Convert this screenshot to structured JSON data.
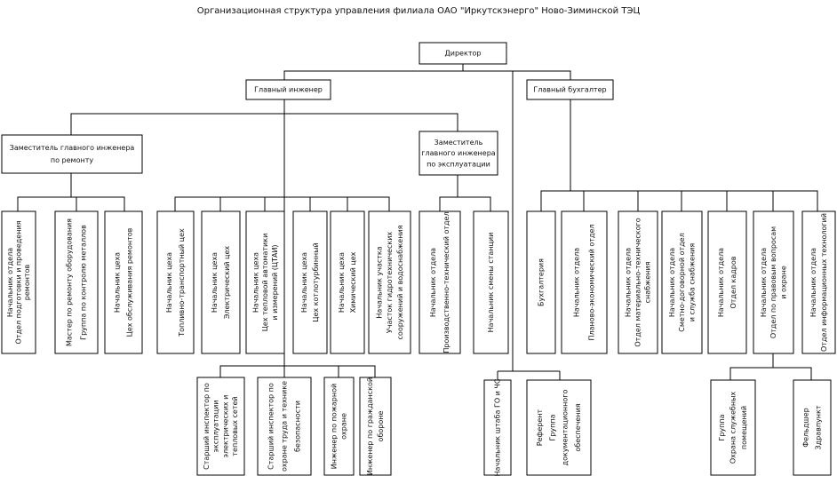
{
  "title": "Организационная структура управления филиала ОАО \"Иркутскэнерго\" Ново-Зиминской ТЭЦ",
  "nodes": [
    {
      "lines": [
        "Директор"
      ]
    },
    {
      "lines": [
        "Главный инженер"
      ]
    },
    {
      "lines": [
        "Главный бухгалтер"
      ]
    },
    {
      "lines": [
        "Заместитель главного инженера",
        "по ремонту"
      ]
    },
    {
      "lines": [
        "Заместитель",
        "главного инженера",
        "по эксплуатации"
      ]
    },
    {
      "lines": [
        "Начальник отдела",
        "Отдел подготовки и проведения",
        "ремонтов"
      ]
    },
    {
      "lines": [
        "Мастер по ремонту оборудования",
        "Группа по контролю металлов"
      ]
    },
    {
      "lines": [
        "Начальник цеха",
        "Цех обслуживания ремонтов"
      ]
    },
    {
      "lines": [
        "Начальник цеха",
        "Топливно-транспортный цех"
      ]
    },
    {
      "lines": [
        "Начальник цеха",
        "Электрический цех"
      ]
    },
    {
      "lines": [
        "Начальник цеха",
        "Цех тепловой автоматики",
        "и измерений (ЦТАИ)"
      ]
    },
    {
      "lines": [
        "Начальник цеха",
        "Цех котлотурбинный"
      ]
    },
    {
      "lines": [
        "Начальник цеха",
        "Химический цех"
      ]
    },
    {
      "lines": [
        "Начальник участка",
        "Участок гидротехнических",
        "сооружений и водоснабжения"
      ]
    },
    {
      "lines": [
        "Начальник отдела",
        "Производственно-технический отдел"
      ]
    },
    {
      "lines": [
        "Начальник смены станции"
      ]
    },
    {
      "lines": [
        "Бухгалтерия"
      ]
    },
    {
      "lines": [
        "Начальник отдела",
        "Планово-экономический отдел"
      ]
    },
    {
      "lines": [
        "Начальник отдела",
        "Отдел материально-технического",
        "снабжения"
      ]
    },
    {
      "lines": [
        "Начальник отдела",
        "Сметно-договорной отдел",
        "и служба снабжения"
      ]
    },
    {
      "lines": [
        "Начальник отдела",
        "Отдел кадров"
      ]
    },
    {
      "lines": [
        "Начальник отдела",
        "Отдел по правовым вопросам",
        "и охране"
      ]
    },
    {
      "lines": [
        "Начальник отдела",
        "Отдел информационных технологий"
      ]
    },
    {
      "lines": [
        "Старший инспектор по",
        "эксплуатации",
        "электрических и",
        "тепловых сетей"
      ]
    },
    {
      "lines": [
        "Старший инспектор по",
        "охране труда и технике",
        "безопасности"
      ]
    },
    {
      "lines": [
        "Инженер по пожарной",
        "охране"
      ]
    },
    {
      "lines": [
        "Инженер по гражданской",
        "обороне"
      ]
    },
    {
      "lines": [
        "Начальник штаба ГО и ЧС"
      ]
    },
    {
      "lines": [
        "Референт",
        "Группа",
        "документационного",
        "обеспечения"
      ]
    },
    {
      "lines": [
        "Группа",
        "Охрана служебных",
        "помещений"
      ]
    },
    {
      "lines": [
        "Фельдшер",
        "Здравпункт"
      ]
    }
  ]
}
